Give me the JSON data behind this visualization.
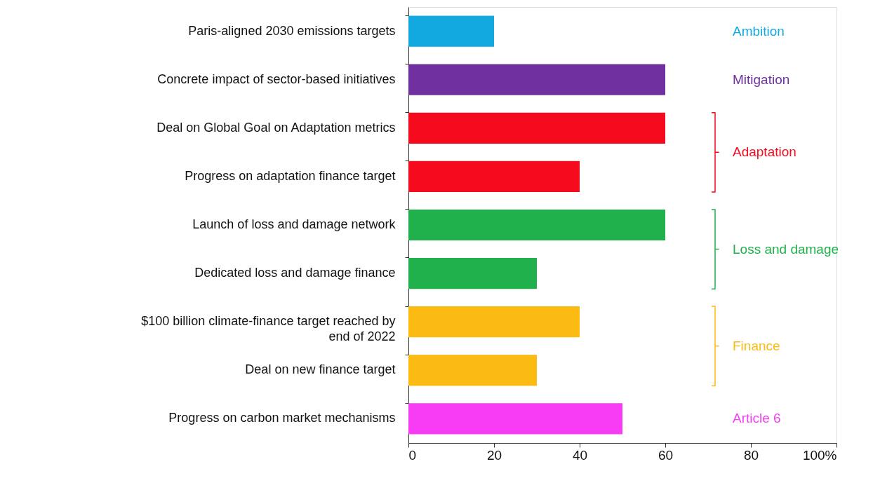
{
  "chart_data": {
    "type": "bar",
    "orientation": "horizontal",
    "categories": [
      "Paris-aligned 2030 emissions targets",
      "Concrete impact of sector-based initiatives",
      "Deal on Global Goal on Adaptation metrics",
      "Progress on adaptation finance target",
      "Launch of loss and damage network",
      "Dedicated loss and damage finance",
      "$100 billion climate-finance target reached by\nend of 2022",
      "Deal on new finance target",
      "Progress on carbon market mechanisms"
    ],
    "values": [
      20,
      60,
      60,
      40,
      60,
      30,
      40,
      30,
      50
    ],
    "colors": [
      "#12a8e0",
      "#7030a0",
      "#f50a1e",
      "#f50a1e",
      "#20b04c",
      "#20b04c",
      "#fbbb12",
      "#fbbb12",
      "#f83cf5"
    ],
    "annotations": [
      "Ambition",
      "Mitigation",
      "Adaptation",
      "Loss and damage",
      "Finance",
      "Article 6"
    ],
    "xlim": [
      0,
      100
    ],
    "xticks": [
      0,
      20,
      40,
      60,
      80,
      {
        "value": 100,
        "label": "100%"
      }
    ],
    "grid": false
  }
}
